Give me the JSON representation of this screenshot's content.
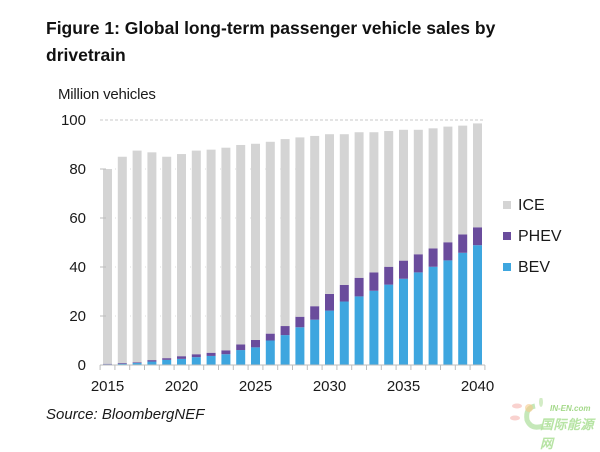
{
  "figure": {
    "title": "Figure 1: Global long-term passenger vehicle sales by drivetrain",
    "source": "Source: BloombergNEF"
  },
  "watermark": {
    "line1": "IN-EN.com",
    "line2": "国际能源网"
  },
  "chart_data": {
    "type": "bar",
    "stacked": true,
    "title": "Figure 1: Global long-term passenger vehicle sales by drivetrain",
    "xlabel": "",
    "ylabel": "Million vehicles",
    "ylim": [
      0,
      100
    ],
    "yticks": [
      0,
      20,
      40,
      60,
      80,
      100
    ],
    "xtick_labels": [
      "2015",
      "2020",
      "2025",
      "2030",
      "2035",
      "2040"
    ],
    "grid": "horizontal dashed at 100 only; solid tick marks",
    "legend_position": "right",
    "categories": [
      "2015",
      "2016",
      "2017",
      "2018",
      "2019",
      "2020",
      "2021",
      "2022",
      "2023",
      "2024",
      "2025",
      "2026",
      "2027",
      "2028",
      "2029",
      "2030",
      "2031",
      "2032",
      "2033",
      "2034",
      "2035",
      "2036",
      "2037",
      "2038",
      "2039",
      "2040"
    ],
    "series": [
      {
        "name": "BEV",
        "color": "#3ea6df",
        "values": [
          0.3,
          0.5,
          0.8,
          1.4,
          2.1,
          2.5,
          3.2,
          3.7,
          4.4,
          6.1,
          7.2,
          10.0,
          12.2,
          15.4,
          18.5,
          22.2,
          25.9,
          28.0,
          30.3,
          32.8,
          35.2,
          37.8,
          40.1,
          42.7,
          45.8,
          48.9
        ]
      },
      {
        "name": "PHEV",
        "color": "#6a4c9c",
        "values": [
          0.2,
          0.3,
          0.3,
          0.6,
          0.7,
          1.1,
          1.2,
          1.3,
          1.6,
          2.3,
          3.0,
          2.8,
          3.7,
          4.3,
          5.5,
          6.8,
          6.8,
          7.6,
          7.5,
          7.3,
          7.4,
          7.4,
          7.5,
          7.4,
          7.5,
          7.3
        ]
      },
      {
        "name": "ICE",
        "color": "#d4d4d4",
        "values": [
          79.5,
          84.2,
          86.4,
          84.8,
          82.2,
          82.5,
          83.1,
          82.9,
          82.7,
          81.4,
          80.1,
          78.3,
          76.3,
          73.2,
          69.5,
          65.2,
          61.5,
          59.4,
          57.2,
          55.4,
          53.4,
          50.8,
          49.0,
          47.2,
          44.4,
          42.4
        ]
      }
    ],
    "legend": [
      "ICE",
      "PHEV",
      "BEV"
    ]
  }
}
